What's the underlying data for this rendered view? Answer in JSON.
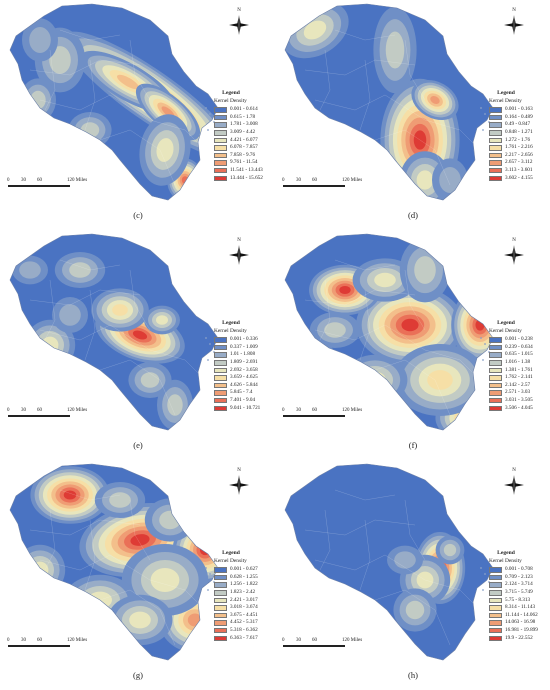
{
  "panels": [
    {
      "id": "c",
      "caption": "(c)",
      "north_label": "N",
      "legend_title": "Legend",
      "legend_subtitle": "Kernel Density",
      "classes": [
        "0.001 - 0.614",
        "0.615 - 1.78",
        "1.781 - 3.008",
        "3.009 - 4.42",
        "4.421 - 6.077",
        "6.078 - 7.857",
        "7.858 - 9.76",
        "9.761 - 11.54",
        "11.541 - 13.443",
        "13.444 - 15.652"
      ],
      "scale_ticks": [
        "0",
        "30",
        "60",
        "120 Miles"
      ]
    },
    {
      "id": "d",
      "caption": "(d)",
      "north_label": "N",
      "legend_title": "Legend",
      "legend_subtitle": "Kernel Density",
      "classes": [
        "0.001 - 0.163",
        "0.164 - 0.489",
        "0.49 - 0.847",
        "0.848 - 1.271",
        "1.272 - 1.76",
        "1.761 - 2.216",
        "2.217 - 2.656",
        "2.657 - 3.112",
        "3.113 - 3.601",
        "3.602 - 4.155"
      ],
      "scale_ticks": [
        "0",
        "30",
        "60",
        "120 Miles"
      ]
    },
    {
      "id": "e",
      "caption": "(e)",
      "north_label": "N",
      "legend_title": "Legend",
      "legend_subtitle": "Kernel Density",
      "classes": [
        "0.001 - 0.336",
        "0.337 - 1.009",
        "1.01 - 1.808",
        "1.809 - 2.691",
        "2.692 - 3.658",
        "3.659 - 4.625",
        "4.626 - 5.844",
        "5.845 - 7.4",
        "7.401 - 9.04",
        "9.041 - 10.721"
      ],
      "scale_ticks": [
        "0",
        "30",
        "60",
        "120 Miles"
      ]
    },
    {
      "id": "f",
      "caption": "(f)",
      "north_label": "N",
      "legend_title": "Legend",
      "legend_subtitle": "Kernel Density",
      "classes": [
        "0.001 - 0.238",
        "0.239 - 0.634",
        "0.635 - 1.015",
        "1.016 - 1.38",
        "1.381 - 1.761",
        "1.762 - 2.141",
        "2.142 - 2.57",
        "2.571 - 3.03",
        "3.031 - 3.505",
        "3.506 - 4.045"
      ],
      "scale_ticks": [
        "0",
        "30",
        "60",
        "120 Miles"
      ]
    },
    {
      "id": "g",
      "caption": "(g)",
      "north_label": "N",
      "legend_title": "Legend",
      "legend_subtitle": "Kernel Density",
      "classes": [
        "0.001 - 0.627",
        "0.628 - 1.255",
        "1.256 - 1.822",
        "1.823 - 2.42",
        "2.421 - 3.017",
        "3.018 - 3.674",
        "3.675 - 4.451",
        "4.452 - 5.317",
        "5.318 - 6.362",
        "6.363 - 7.617"
      ],
      "scale_ticks": [
        "0",
        "30",
        "60",
        "120 Miles"
      ]
    },
    {
      "id": "h",
      "caption": "(h)",
      "north_label": "N",
      "legend_title": "Legend",
      "legend_subtitle": "Kernel Density",
      "classes": [
        "0.001 - 0.708",
        "0.709 - 2.123",
        "2.124 - 3.714",
        "3.715 - 5.749",
        "5.75 - 8.313",
        "8.314 - 11.143",
        "11.144 - 14.062",
        "14.063 - 16.98",
        "16.981 - 19.899",
        "19.9 - 22.552"
      ],
      "scale_ticks": [
        "0",
        "30",
        "60",
        "120 Miles"
      ]
    }
  ],
  "palette": [
    "#4a73c2",
    "#6f8fc6",
    "#98acc7",
    "#c2cbc4",
    "#e8e6bd",
    "#f6dfa6",
    "#f3bf8b",
    "#ef9c74",
    "#ea7058",
    "#de3b35"
  ]
}
